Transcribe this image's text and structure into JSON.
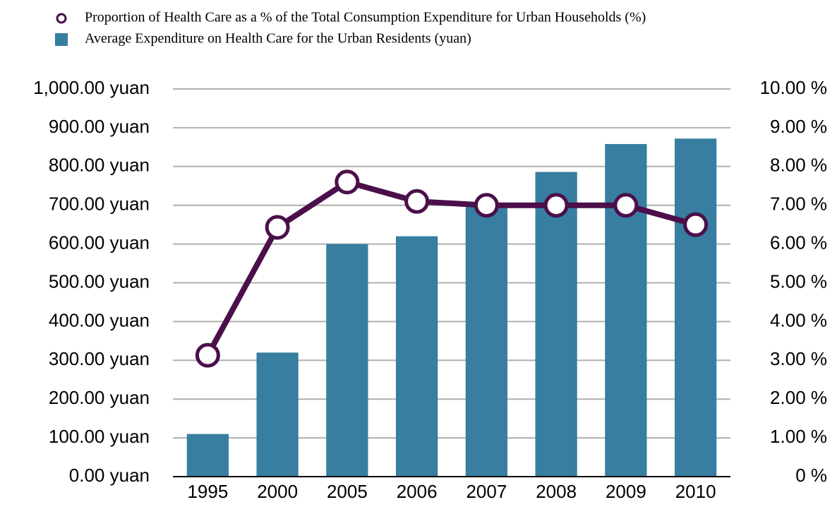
{
  "chart_data": {
    "type": "bar",
    "categories": [
      "1995",
      "2000",
      "2005",
      "2006",
      "2007",
      "2008",
      "2009",
      "2010"
    ],
    "series": [
      {
        "name": "Proportion of Health Care as a % of the Total Consumption Expenditure for Urban Households (%)",
        "type": "line",
        "axis": "y2",
        "color": "#4b0f4a",
        "values": [
          3.13,
          6.43,
          7.6,
          7.1,
          7.0,
          7.0,
          7.0,
          6.5
        ]
      },
      {
        "name": "Average Expenditure on Health Care for the Urban Residents (yuan)",
        "type": "bar",
        "color": "#377ea0",
        "values": [
          110,
          320,
          600,
          620,
          700,
          786,
          858,
          872
        ]
      }
    ],
    "ylim": [
      0,
      1000
    ],
    "yticks": [
      {
        "value": 0,
        "label": "0.00 yuan"
      },
      {
        "value": 100,
        "label": "100.00 yuan"
      },
      {
        "value": 200,
        "label": "200.00 yuan"
      },
      {
        "value": 300,
        "label": "300.00 yuan"
      },
      {
        "value": 400,
        "label": "400.00 yuan"
      },
      {
        "value": 500,
        "label": "500.00 yuan"
      },
      {
        "value": 600,
        "label": "600.00 yuan"
      },
      {
        "value": 700,
        "label": "700.00 yuan"
      },
      {
        "value": 800,
        "label": "800.00 yuan"
      },
      {
        "value": 900,
        "label": "900.00 yuan"
      },
      {
        "value": 1000,
        "label": "1,000.00 yuan"
      }
    ],
    "y2lim": [
      0,
      10
    ],
    "y2ticks": [
      {
        "value": 0,
        "label": "0 %"
      },
      {
        "value": 1,
        "label": "1.00 %"
      },
      {
        "value": 2,
        "label": "2.00 %"
      },
      {
        "value": 3,
        "label": "3.00 %"
      },
      {
        "value": 4,
        "label": "4.00 %"
      },
      {
        "value": 5,
        "label": "5.00 %"
      },
      {
        "value": 6,
        "label": "6.00 %"
      },
      {
        "value": 7,
        "label": "7.00 %"
      },
      {
        "value": 8,
        "label": "8.00 %"
      },
      {
        "value": 9,
        "label": "9.00 %"
      },
      {
        "value": 10,
        "label": "10.00 %"
      }
    ],
    "grid": true
  }
}
